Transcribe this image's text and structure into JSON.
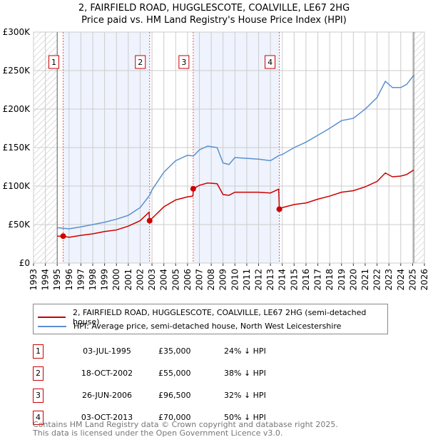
{
  "chart_data": {
    "type": "line",
    "title": "2, FAIRFIELD ROAD, HUGGLESCOTE, COALVILLE, LE67 2HG",
    "subtitle": "Price paid vs. HM Land Registry's House Price Index (HPI)",
    "xlim": [
      1993,
      2026
    ],
    "ylim": [
      0,
      300000
    ],
    "x_ticks": [
      "1993",
      "1994",
      "1995",
      "1996",
      "1997",
      "1998",
      "1999",
      "2000",
      "2001",
      "2002",
      "2003",
      "2004",
      "2005",
      "2006",
      "2007",
      "2008",
      "2009",
      "2010",
      "2011",
      "2012",
      "2013",
      "2014",
      "2015",
      "2016",
      "2017",
      "2018",
      "2019",
      "2020",
      "2021",
      "2022",
      "2023",
      "2024",
      "2025",
      "2026"
    ],
    "y_ticks": [
      {
        "v": 0,
        "label": "£0"
      },
      {
        "v": 50000,
        "label": "£50K"
      },
      {
        "v": 100000,
        "label": "£100K"
      },
      {
        "v": 150000,
        "label": "£150K"
      },
      {
        "v": 200000,
        "label": "£200K"
      },
      {
        "v": 250000,
        "label": "£250K"
      },
      {
        "v": 300000,
        "label": "£300K"
      }
    ],
    "series": [
      {
        "name": "2, FAIRFIELD ROAD, HUGGLESCOTE, COALVILLE, LE67 2HG (semi-detached house)",
        "color": "#cc0000",
        "x": [
          1995,
          1995.5,
          1996,
          1997,
          1998,
          1999,
          2000,
          2001,
          2002,
          2002.75,
          2002.8,
          2003,
          2004,
          2005,
          2006,
          2006.45,
          2006.5,
          2007,
          2007.7,
          2008.5,
          2009,
          2009.5,
          2010,
          2011,
          2012,
          2013,
          2013.7,
          2013.75,
          2014,
          2015,
          2016,
          2017,
          2018,
          2019,
          2020,
          2021,
          2022,
          2022.7,
          2023.3,
          2024,
          2024.5,
          2025.1
        ],
        "y": [
          35000,
          35000,
          33500,
          36000,
          38000,
          41000,
          43000,
          48000,
          55000,
          66000,
          55000,
          58000,
          73000,
          82000,
          86000,
          87000,
          96500,
          101000,
          104000,
          103000,
          89000,
          88000,
          92000,
          92000,
          92000,
          91000,
          96000,
          70000,
          72000,
          76000,
          78000,
          83000,
          87000,
          92000,
          94000,
          99000,
          106000,
          117000,
          112000,
          113000,
          115000,
          121000
        ]
      },
      {
        "name": "HPI: Average price, semi-detached house, North West Leicestershire",
        "color": "#5b8fd0",
        "x": [
          1995,
          1996,
          1997,
          1998,
          1999,
          2000,
          2001,
          2002,
          2002.8,
          2003,
          2004,
          2005,
          2006,
          2006.5,
          2007,
          2007.7,
          2008.5,
          2009,
          2009.5,
          2010,
          2011,
          2012,
          2013,
          2013.75,
          2014,
          2015,
          2016,
          2017,
          2018,
          2019,
          2020,
          2021,
          2022,
          2022.7,
          2023.3,
          2024,
          2024.5,
          2025.1
        ],
        "y": [
          46000,
          44500,
          47000,
          50000,
          53000,
          57000,
          62000,
          72000,
          88000,
          95000,
          118000,
          133000,
          140000,
          139000,
          147000,
          152000,
          150000,
          130000,
          128000,
          137000,
          136000,
          135000,
          133000,
          140000,
          141000,
          150000,
          157000,
          166000,
          175000,
          185000,
          188000,
          200000,
          215000,
          236000,
          228000,
          228000,
          232000,
          244000
        ]
      }
    ],
    "sales": [
      {
        "id": "1",
        "x": 1995.5,
        "date": "03-JUL-1995",
        "price": "£35,000",
        "value": 35000,
        "hpi": "24% ↓ HPI"
      },
      {
        "id": "2",
        "x": 2002.8,
        "date": "18-OCT-2002",
        "price": "£55,000",
        "value": 55000,
        "hpi": "38% ↓ HPI"
      },
      {
        "id": "3",
        "x": 2006.48,
        "date": "26-JUN-2006",
        "price": "£96,500",
        "value": 96500,
        "hpi": "32% ↓ HPI"
      },
      {
        "id": "4",
        "x": 2013.75,
        "date": "03-OCT-2013",
        "price": "£70,000",
        "value": 70000,
        "hpi": "50% ↓ HPI"
      }
    ],
    "hatch": [
      [
        1993,
        1995
      ],
      [
        2025.1,
        2026
      ]
    ],
    "shaded": [
      [
        1995.5,
        2002.8
      ],
      [
        2006.48,
        2013.75
      ]
    ]
  },
  "footer": {
    "line1": "Contains HM Land Registry data © Crown copyright and database right 2025.",
    "line2": "This data is licensed under the Open Government Licence v3.0."
  }
}
